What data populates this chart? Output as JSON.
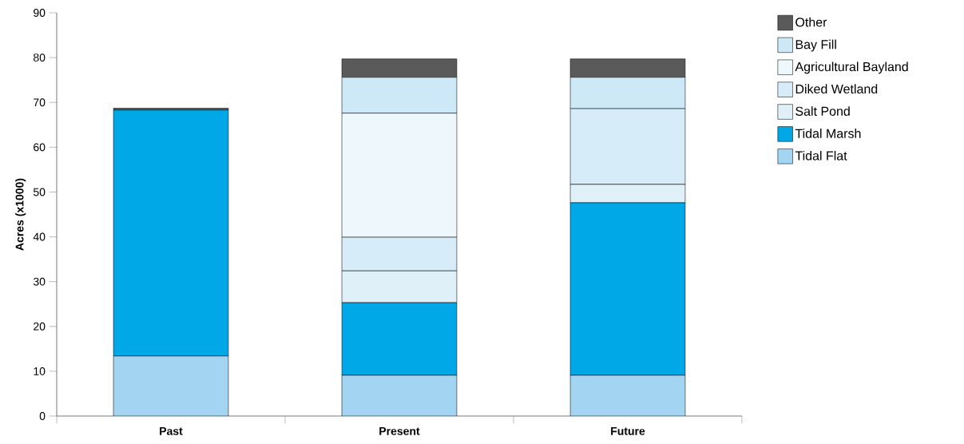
{
  "chart_data": {
    "type": "bar",
    "stacked": true,
    "ylabel": "Acres (x1000)",
    "categories": [
      "Past",
      "Present",
      "Future"
    ],
    "series": [
      {
        "name": "Tidal Flat",
        "color": "#a3d5f2",
        "values": [
          13.4,
          9.1,
          9.1
        ]
      },
      {
        "name": "Tidal Marsh",
        "color": "#00a8e8",
        "values": [
          54.9,
          16.2,
          38.5
        ]
      },
      {
        "name": "Salt Pond",
        "color": "#dff0f9",
        "values": [
          0,
          7.1,
          4.1
        ]
      },
      {
        "name": "Diked Wetland",
        "color": "#d6edf9",
        "values": [
          0,
          7.5,
          16.9
        ]
      },
      {
        "name": "Agricultural Bayland",
        "color": "#eef7fc",
        "values": [
          0,
          27.7,
          0
        ]
      },
      {
        "name": "Bay Fill",
        "color": "#cde8f7",
        "values": [
          0,
          8.0,
          7.0
        ]
      },
      {
        "name": "Other",
        "color": "#5a5a5a",
        "values": [
          0.4,
          4.1,
          4.1
        ]
      }
    ],
    "ylim": [
      0,
      90
    ],
    "yticks": [
      0,
      10,
      20,
      30,
      40,
      50,
      60,
      70,
      80,
      90
    ],
    "legend": "right"
  }
}
